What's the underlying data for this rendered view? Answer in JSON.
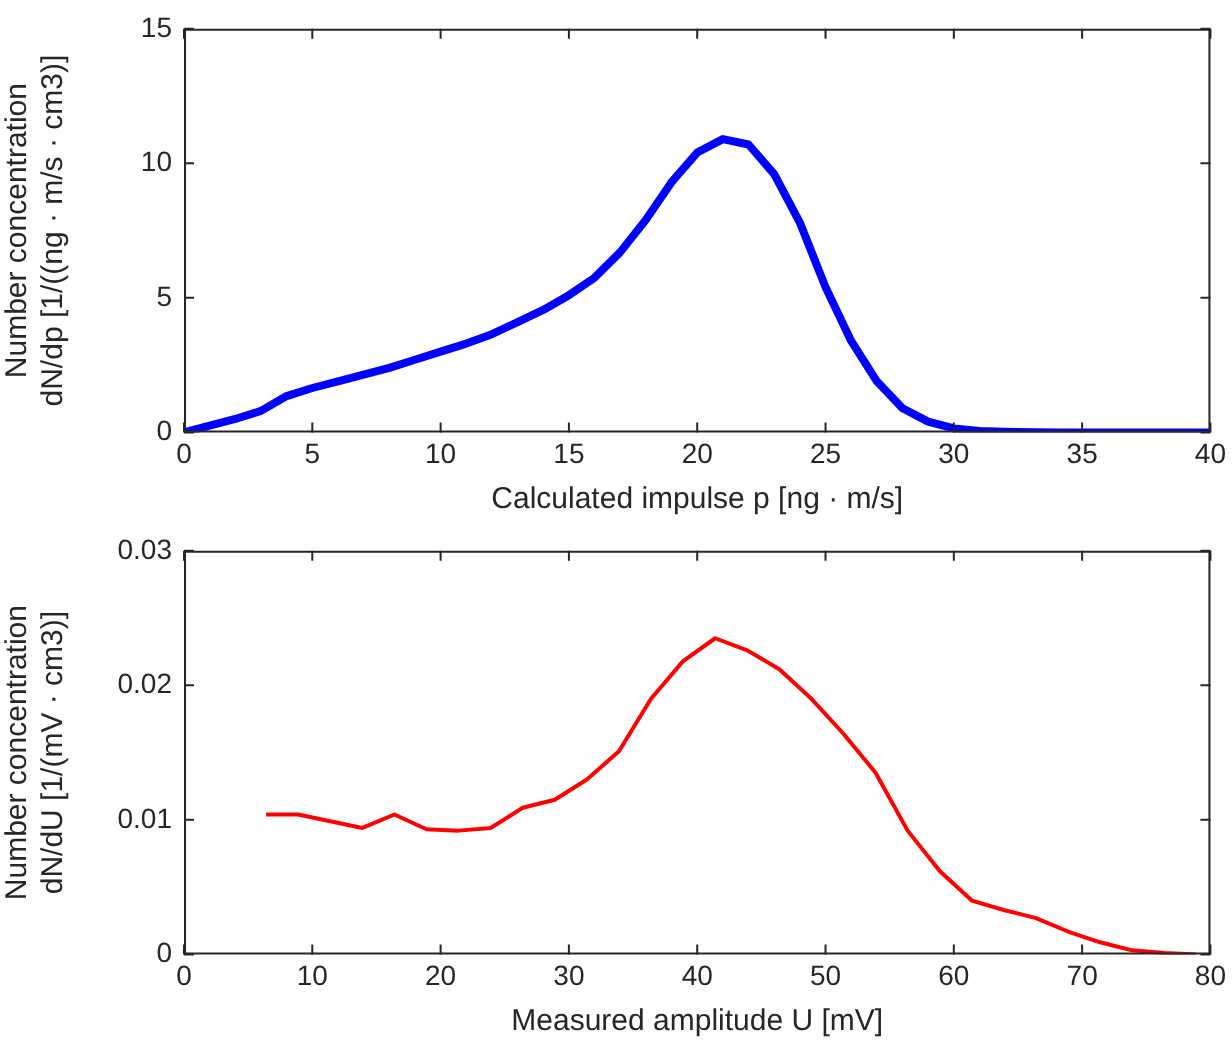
{
  "chart_data": [
    {
      "type": "line",
      "xlabel": "Calculated impulse p [ng · m/s]",
      "ylabel": "Number concentration\ndN/dp [1/((ng · m/s · cm3)]",
      "xlim": [
        0,
        40
      ],
      "xticks": [
        0,
        5,
        10,
        15,
        20,
        25,
        30,
        35,
        40
      ],
      "ylim": [
        0,
        15
      ],
      "yticks": [
        0,
        5,
        10,
        15
      ],
      "grid": false,
      "legend": false,
      "series": [
        {
          "color": "#0000ff",
          "x": [
            0,
            1,
            2,
            3,
            4,
            5,
            6,
            7,
            8,
            9,
            10,
            11,
            12,
            13,
            14,
            15,
            16,
            17,
            18,
            19,
            20,
            21,
            22,
            23,
            24,
            25,
            26,
            27,
            28,
            29,
            30,
            31,
            32,
            34,
            40
          ],
          "values": [
            0,
            0.25,
            0.5,
            0.8,
            1.35,
            1.65,
            1.9,
            2.15,
            2.4,
            2.7,
            3.0,
            3.3,
            3.65,
            4.1,
            4.55,
            5.1,
            5.75,
            6.7,
            7.9,
            9.3,
            10.4,
            10.9,
            10.7,
            9.6,
            7.8,
            5.4,
            3.4,
            1.9,
            0.9,
            0.4,
            0.15,
            0.05,
            0.02,
            0,
            0
          ]
        }
      ]
    },
    {
      "type": "line",
      "xlabel": "Measured amplitude U [mV]",
      "ylabel": "Number concentration\ndN/dU [1/(mV · cm3)]",
      "xlim": [
        0,
        80
      ],
      "xticks": [
        0,
        10,
        20,
        30,
        40,
        50,
        60,
        70,
        80
      ],
      "ylim": [
        0,
        0.03
      ],
      "yticks": [
        0,
        0.01,
        0.02,
        0.03
      ],
      "grid": false,
      "legend": false,
      "series": [
        {
          "color": "#ff0000",
          "x": [
            6.4,
            8.9,
            11.4,
            13.9,
            16.4,
            18.9,
            21.4,
            23.9,
            26.4,
            28.9,
            31.4,
            33.9,
            36.4,
            38.9,
            41.4,
            43.9,
            46.4,
            48.9,
            51.4,
            53.9,
            56.4,
            58.9,
            61.4,
            63.9,
            66.4,
            68.9,
            71.4,
            73.9,
            76.4,
            78.9
          ],
          "values": [
            0.0104,
            0.0104,
            0.0099,
            0.0094,
            0.0104,
            0.0093,
            0.0092,
            0.0094,
            0.0109,
            0.0115,
            0.013,
            0.0151,
            0.019,
            0.0218,
            0.0235,
            0.0226,
            0.0212,
            0.019,
            0.0164,
            0.0135,
            0.0092,
            0.0062,
            0.004,
            0.0033,
            0.0027,
            0.0017,
            0.0009,
            0.0003,
            0.0001,
            0
          ]
        }
      ]
    }
  ]
}
